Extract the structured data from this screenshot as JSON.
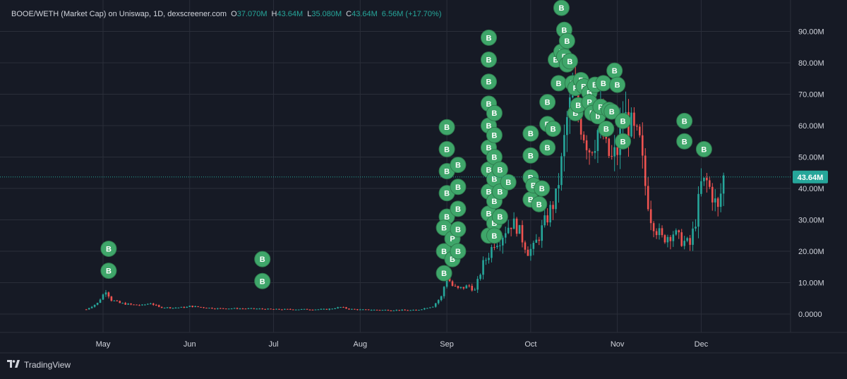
{
  "header": {
    "symbol": "BOOE/WETH (Market Cap) on Uniswap, 1D, dexscreener.com",
    "o_label": "O",
    "o_value": "37.070M",
    "h_label": "H",
    "h_value": "43.64M",
    "l_label": "L",
    "l_value": "35.080M",
    "c_label": "C",
    "c_value": "43.64M",
    "change": "6.56M (+17.70%)"
  },
  "brand": {
    "name": "TradingView",
    "icon": "tradingview-logo-icon"
  },
  "colors": {
    "background": "#161a25",
    "grid": "#2a2e39",
    "up": "#26a69a",
    "down": "#ef5350",
    "marker": "#3fa66a",
    "price_label": "#26a69a"
  },
  "chart_data": {
    "type": "candlestick",
    "title": "BOOE/WETH (Market Cap) on Uniswap, 1D, dexscreener.com",
    "ylim": [
      -6000000,
      98000000
    ],
    "y_ticks": [
      {
        "value": 0,
        "label": "0.0000"
      },
      {
        "value": 10000000,
        "label": "10.00M"
      },
      {
        "value": 20000000,
        "label": "20.00M"
      },
      {
        "value": 30000000,
        "label": "30.00M"
      },
      {
        "value": 40000000,
        "label": "40.00M"
      },
      {
        "value": 50000000,
        "label": "50.00M"
      },
      {
        "value": 60000000,
        "label": "60.00M"
      },
      {
        "value": 70000000,
        "label": "70.00M"
      },
      {
        "value": 80000000,
        "label": "80.00M"
      },
      {
        "value": 90000000,
        "label": "90.00M"
      }
    ],
    "x_ticks": [
      {
        "day": 0,
        "label": "May"
      },
      {
        "day": 31,
        "label": "Jun"
      },
      {
        "day": 61,
        "label": "Jul"
      },
      {
        "day": 92,
        "label": "Aug"
      },
      {
        "day": 123,
        "label": "Sep"
      },
      {
        "day": 153,
        "label": "Oct"
      },
      {
        "day": 184,
        "label": "Nov"
      },
      {
        "day": 214,
        "label": "Dec"
      }
    ],
    "x_start_day": -6,
    "x_end_day": 224,
    "current_price": {
      "value": 43640000,
      "label": "43.64M"
    },
    "trend_points": [
      [
        -6,
        1.5
      ],
      [
        -2,
        3.5
      ],
      [
        1,
        7.5
      ],
      [
        3,
        4.5
      ],
      [
        6,
        3.5
      ],
      [
        10,
        3.0
      ],
      [
        14,
        2.8
      ],
      [
        17,
        3.5
      ],
      [
        20,
        2.2
      ],
      [
        25,
        2.0
      ],
      [
        30,
        2.2
      ],
      [
        31,
        2.5
      ],
      [
        40,
        1.8
      ],
      [
        45,
        1.8
      ],
      [
        55,
        1.7
      ],
      [
        61,
        1.5
      ],
      [
        70,
        1.5
      ],
      [
        80,
        1.5
      ],
      [
        85,
        2.2
      ],
      [
        88,
        1.6
      ],
      [
        92,
        1.4
      ],
      [
        100,
        1.3
      ],
      [
        112,
        1.2
      ],
      [
        118,
        2.5
      ],
      [
        121,
        5.5
      ],
      [
        123,
        12
      ],
      [
        125,
        9
      ],
      [
        127,
        8
      ],
      [
        129,
        8.5
      ],
      [
        131,
        9
      ],
      [
        133,
        7.5
      ],
      [
        136,
        16
      ],
      [
        138,
        19
      ],
      [
        140,
        23
      ],
      [
        142,
        24
      ],
      [
        144,
        27
      ],
      [
        146,
        29
      ],
      [
        148,
        28
      ],
      [
        150,
        24
      ],
      [
        152,
        20
      ],
      [
        154,
        21
      ],
      [
        156,
        25
      ],
      [
        158,
        29
      ],
      [
        160,
        33
      ],
      [
        162,
        37
      ],
      [
        164,
        48
      ],
      [
        166,
        62
      ],
      [
        168,
        70
      ],
      [
        170,
        64
      ],
      [
        172,
        58
      ],
      [
        174,
        53
      ],
      [
        176,
        56
      ],
      [
        178,
        61
      ],
      [
        180,
        52
      ],
      [
        182,
        49
      ],
      [
        184,
        52
      ],
      [
        186,
        63
      ],
      [
        188,
        61
      ],
      [
        190,
        57
      ],
      [
        192,
        54
      ],
      [
        194,
        41
      ],
      [
        196,
        31
      ],
      [
        198,
        27
      ],
      [
        200,
        24
      ],
      [
        202,
        25
      ],
      [
        204,
        26
      ],
      [
        206,
        24
      ],
      [
        208,
        23
      ],
      [
        210,
        22
      ],
      [
        212,
        30
      ],
      [
        214,
        41
      ],
      [
        216,
        42
      ],
      [
        218,
        38
      ],
      [
        220,
        33
      ],
      [
        222,
        43.64
      ]
    ],
    "markers": [
      {
        "day": 2,
        "value": 20.8,
        "label": "B"
      },
      {
        "day": 2,
        "value": 13.8,
        "label": "B"
      },
      {
        "day": 57,
        "value": 17.5,
        "label": "B"
      },
      {
        "day": 57,
        "value": 10.5,
        "label": "B"
      },
      {
        "day": 123,
        "value": 59.5,
        "label": "B"
      },
      {
        "day": 123,
        "value": 52.5,
        "label": "B"
      },
      {
        "day": 123,
        "value": 45.5,
        "label": "B"
      },
      {
        "day": 123,
        "value": 38.5,
        "label": "B"
      },
      {
        "day": 123,
        "value": 31,
        "label": "B"
      },
      {
        "day": 122,
        "value": 27.5,
        "label": "B"
      },
      {
        "day": 122,
        "value": 20,
        "label": "B"
      },
      {
        "day": 122,
        "value": 13,
        "label": "B"
      },
      {
        "day": 125,
        "value": 24,
        "label": "P"
      },
      {
        "day": 125,
        "value": 17.5,
        "label": "B"
      },
      {
        "day": 127,
        "value": 47.5,
        "label": "B"
      },
      {
        "day": 127,
        "value": 40.5,
        "label": "B"
      },
      {
        "day": 127,
        "value": 33.5,
        "label": "B"
      },
      {
        "day": 127,
        "value": 27,
        "label": "B"
      },
      {
        "day": 127,
        "value": 20,
        "label": "B"
      },
      {
        "day": 138,
        "value": 88,
        "label": "B"
      },
      {
        "day": 138,
        "value": 81,
        "label": "B"
      },
      {
        "day": 138,
        "value": 74,
        "label": "B"
      },
      {
        "day": 138,
        "value": 67,
        "label": "B"
      },
      {
        "day": 138,
        "value": 60,
        "label": "B"
      },
      {
        "day": 138,
        "value": 53,
        "label": "B"
      },
      {
        "day": 138,
        "value": 46,
        "label": "B"
      },
      {
        "day": 138,
        "value": 39,
        "label": "B"
      },
      {
        "day": 138,
        "value": 32,
        "label": "B"
      },
      {
        "day": 138,
        "value": 25,
        "label": "E"
      },
      {
        "day": 140,
        "value": 64,
        "label": "B"
      },
      {
        "day": 140,
        "value": 57,
        "label": "B"
      },
      {
        "day": 140,
        "value": 50,
        "label": "B"
      },
      {
        "day": 140,
        "value": 43,
        "label": "B"
      },
      {
        "day": 140,
        "value": 36,
        "label": "B"
      },
      {
        "day": 140,
        "value": 29,
        "label": "B"
      },
      {
        "day": 140,
        "value": 25,
        "label": "B"
      },
      {
        "day": 142,
        "value": 46,
        "label": "B"
      },
      {
        "day": 142,
        "value": 39,
        "label": "B"
      },
      {
        "day": 142,
        "value": 31,
        "label": "B"
      },
      {
        "day": 145,
        "value": 42,
        "label": "B"
      },
      {
        "day": 153,
        "value": 57.5,
        "label": "B"
      },
      {
        "day": 153,
        "value": 50.5,
        "label": "B"
      },
      {
        "day": 153,
        "value": 43.5,
        "label": "B"
      },
      {
        "day": 153,
        "value": 36.5,
        "label": "B"
      },
      {
        "day": 154,
        "value": 41,
        "label": "B"
      },
      {
        "day": 156,
        "value": 35,
        "label": "B"
      },
      {
        "day": 157,
        "value": 40,
        "label": "B"
      },
      {
        "day": 159,
        "value": 67.5,
        "label": "B"
      },
      {
        "day": 159,
        "value": 60.5,
        "label": "B"
      },
      {
        "day": 159,
        "value": 53,
        "label": "B"
      },
      {
        "day": 161,
        "value": 59,
        "label": "B"
      },
      {
        "day": 162,
        "value": 81,
        "label": "B"
      },
      {
        "day": 163,
        "value": 73.5,
        "label": "B"
      },
      {
        "day": 164,
        "value": 97.5,
        "label": "B"
      },
      {
        "day": 164,
        "value": 83.5,
        "label": "B"
      },
      {
        "day": 165,
        "value": 90.5,
        "label": "B"
      },
      {
        "day": 165,
        "value": 82,
        "label": "P"
      },
      {
        "day": 166,
        "value": 87,
        "label": "B"
      },
      {
        "day": 166,
        "value": 79.5,
        "label": "B"
      },
      {
        "day": 167,
        "value": 80.5,
        "label": "B"
      },
      {
        "day": 168,
        "value": 73.5,
        "label": "B"
      },
      {
        "day": 169,
        "value": 72,
        "label": "P"
      },
      {
        "day": 169,
        "value": 64,
        "label": "B"
      },
      {
        "day": 170,
        "value": 66.5,
        "label": "B"
      },
      {
        "day": 171,
        "value": 74.5,
        "label": "P"
      },
      {
        "day": 172,
        "value": 72.5,
        "label": "B"
      },
      {
        "day": 174,
        "value": 70.5,
        "label": "B"
      },
      {
        "day": 174,
        "value": 67.5,
        "label": "P"
      },
      {
        "day": 175,
        "value": 64,
        "label": "B"
      },
      {
        "day": 176,
        "value": 73,
        "label": "B"
      },
      {
        "day": 177,
        "value": 63,
        "label": "b"
      },
      {
        "day": 178,
        "value": 66,
        "label": "P"
      },
      {
        "day": 179,
        "value": 73.5,
        "label": "B"
      },
      {
        "day": 180,
        "value": 59,
        "label": "B"
      },
      {
        "day": 181,
        "value": 65,
        "label": "P"
      },
      {
        "day": 182,
        "value": 64.5,
        "label": "B"
      },
      {
        "day": 183,
        "value": 77.5,
        "label": "B"
      },
      {
        "day": 184,
        "value": 73,
        "label": "B"
      },
      {
        "day": 186,
        "value": 61.5,
        "label": "B"
      },
      {
        "day": 186,
        "value": 55,
        "label": "B"
      },
      {
        "day": 208,
        "value": 61.5,
        "label": "B"
      },
      {
        "day": 208,
        "value": 55,
        "label": "B"
      },
      {
        "day": 215,
        "value": 52.5,
        "label": "B"
      }
    ]
  }
}
